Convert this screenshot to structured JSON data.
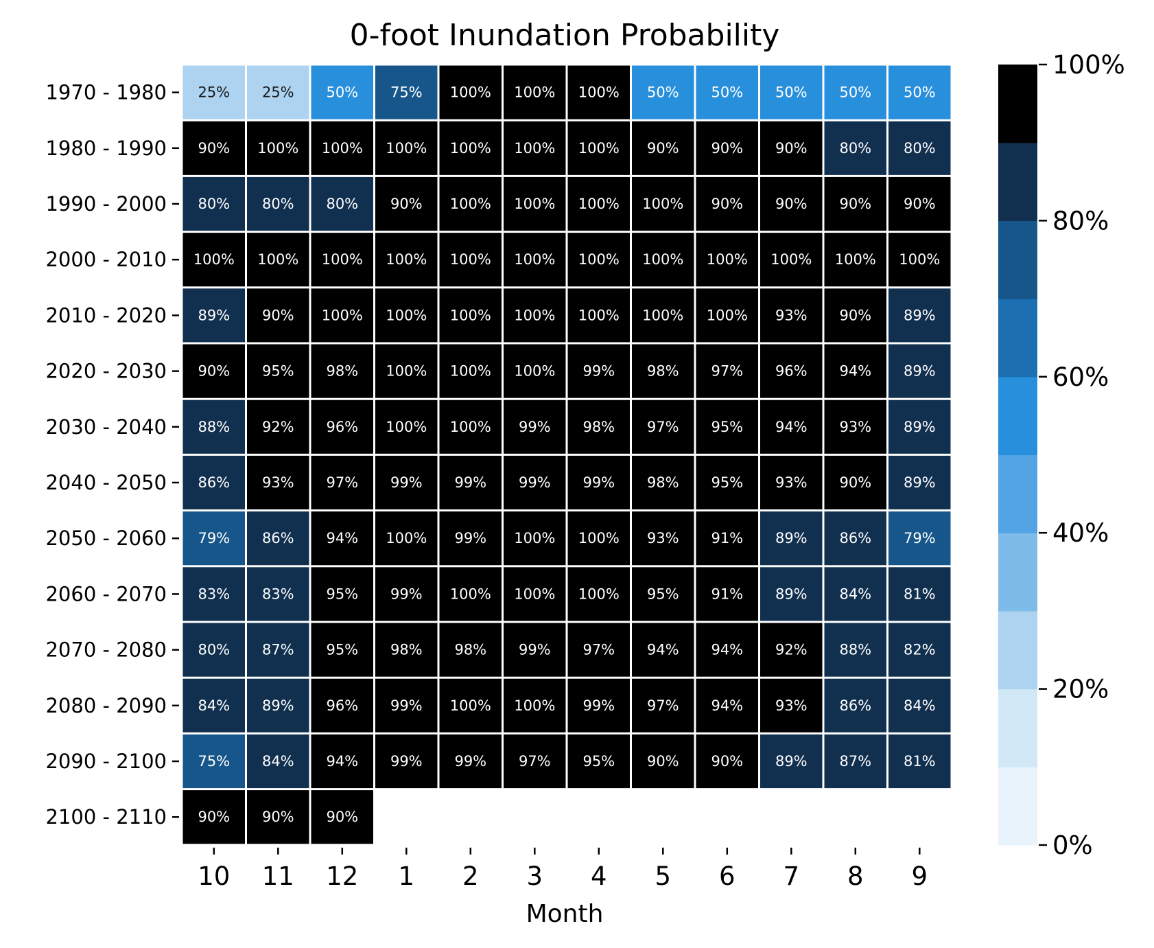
{
  "chart_data": {
    "type": "heatmap",
    "title": "0-foot Inundation Probability",
    "xlabel": "Month",
    "ylabel": "",
    "x_categories": [
      "10",
      "11",
      "12",
      "1",
      "2",
      "3",
      "4",
      "5",
      "6",
      "7",
      "8",
      "9"
    ],
    "y_categories": [
      "1970 - 1980",
      "1980 - 1990",
      "1990 - 2000",
      "2000 - 2010",
      "2010 - 2020",
      "2020 - 2030",
      "2030 - 2040",
      "2040 - 2050",
      "2050 - 2060",
      "2060 - 2070",
      "2070 - 2080",
      "2080 - 2090",
      "2090 - 2100",
      "2100 - 2110"
    ],
    "values": [
      [
        25,
        25,
        50,
        75,
        100,
        100,
        100,
        50,
        50,
        50,
        50,
        50
      ],
      [
        90,
        100,
        100,
        100,
        100,
        100,
        100,
        90,
        90,
        90,
        80,
        80
      ],
      [
        80,
        80,
        80,
        90,
        100,
        100,
        100,
        100,
        90,
        90,
        90,
        90
      ],
      [
        100,
        100,
        100,
        100,
        100,
        100,
        100,
        100,
        100,
        100,
        100,
        100
      ],
      [
        89,
        90,
        100,
        100,
        100,
        100,
        100,
        100,
        100,
        93,
        90,
        89
      ],
      [
        90,
        95,
        98,
        100,
        100,
        100,
        99,
        98,
        97,
        96,
        94,
        89
      ],
      [
        88,
        92,
        96,
        100,
        100,
        99,
        98,
        97,
        95,
        94,
        93,
        89
      ],
      [
        86,
        93,
        97,
        99,
        99,
        99,
        99,
        98,
        95,
        93,
        90,
        89
      ],
      [
        79,
        86,
        94,
        100,
        99,
        100,
        100,
        93,
        91,
        89,
        86,
        79
      ],
      [
        83,
        83,
        95,
        99,
        100,
        100,
        100,
        95,
        91,
        89,
        84,
        81
      ],
      [
        80,
        87,
        95,
        98,
        98,
        99,
        97,
        94,
        94,
        92,
        88,
        82
      ],
      [
        84,
        89,
        96,
        99,
        100,
        100,
        99,
        97,
        94,
        93,
        86,
        84
      ],
      [
        75,
        84,
        94,
        99,
        99,
        97,
        95,
        90,
        90,
        89,
        87,
        81
      ],
      [
        90,
        90,
        90,
        null,
        null,
        null,
        null,
        null,
        null,
        null,
        null,
        null
      ]
    ],
    "value_suffix": "%",
    "color_range": [
      0,
      100
    ],
    "colorbar": {
      "ticks": [
        "0%",
        "20%",
        "40%",
        "60%",
        "80%",
        "100%"
      ],
      "tick_values": [
        0,
        20,
        40,
        60,
        80,
        100
      ],
      "bins": 10,
      "colors": [
        "#e9f3fb",
        "#d3e8f7",
        "#add3f1",
        "#7dbbe9",
        "#52a4e4",
        "#288fdc",
        "#1c6fb0",
        "#17568a",
        "#112f4f",
        "#000000"
      ],
      "placement": "right"
    },
    "grid": false
  }
}
